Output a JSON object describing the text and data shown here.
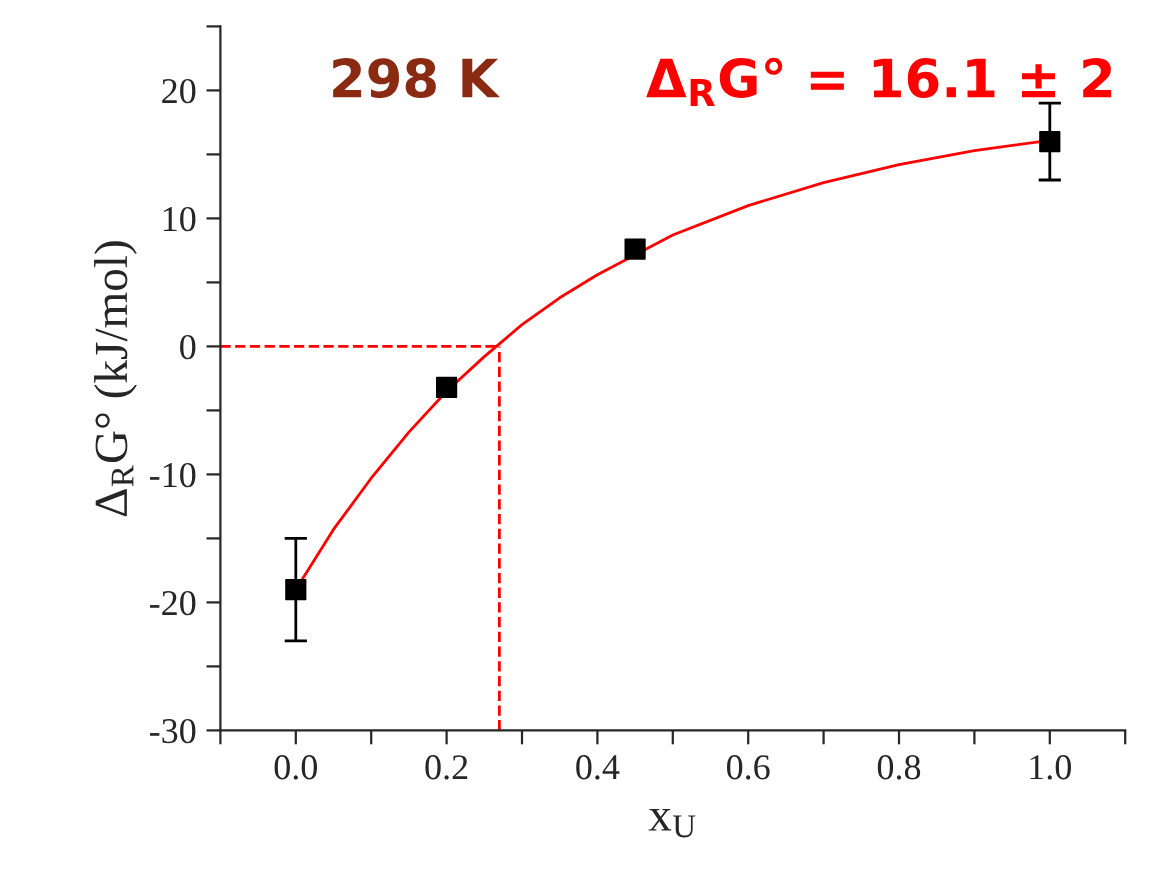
{
  "chart_data": {
    "type": "scatter",
    "xlabel": "x$_{U}$",
    "ylabel": "Δ$_{R}$G° (kJ/mol)",
    "annotations": [
      "298 K",
      "Δ$_{R}$G° = 16.1 ± 2"
    ],
    "series": [
      {
        "color": "#000000",
        "marker": "square",
        "x": [
          0.0,
          0.2,
          0.45,
          1.0
        ],
        "values": [
          -19.0,
          -3.2,
          7.6,
          16.0
        ],
        "errors": [
          4,
          null,
          null,
          3
        ]
      },
      {
        "type": "line",
        "color": "#ff0000",
        "marker": "none",
        "line_style": "solid",
        "x": [
          0,
          0.05,
          0.1,
          0.15,
          0.2,
          0.25,
          0.3,
          0.35,
          0.4,
          0.5,
          0.6,
          0.7,
          0.8,
          0.9,
          1.0
        ],
        "values": [
          -19.0,
          -14.3,
          -10.3,
          -6.7,
          -3.5,
          -0.8,
          1.7,
          3.8,
          5.6,
          8.7,
          11.0,
          12.8,
          14.2,
          15.3,
          16.1
        ]
      }
    ],
    "ref_lines": [
      {
        "axis": "y",
        "value": 0,
        "color": "#ff0000",
        "line_style": "dashed"
      },
      {
        "axis": "x",
        "value": 0.27,
        "color": "#ff0000",
        "line_style": "dashed"
      }
    ],
    "xlim": [
      -0.1,
      1.1
    ],
    "ylim": [
      -30,
      25
    ],
    "xticks": [
      {
        "value": -0.1,
        "label": null
      },
      {
        "value": 0,
        "label": "0.0"
      },
      {
        "value": 0.1,
        "label": null
      },
      0.2,
      {
        "value": 0.3,
        "label": null
      },
      0.4,
      {
        "value": 0.5,
        "label": null
      },
      0.6,
      {
        "value": 0.7,
        "label": null
      },
      0.8,
      {
        "value": 0.9,
        "label": null
      },
      {
        "value": 1,
        "label": "1.0"
      },
      {
        "value": 1.1,
        "label": null
      }
    ],
    "yticks": [
      -30,
      {
        "value": -25,
        "label": null
      },
      -20,
      {
        "value": -15,
        "label": null
      },
      -10,
      {
        "value": -5,
        "label": null
      },
      0,
      {
        "value": 5,
        "label": null
      },
      10,
      {
        "value": 15,
        "label": null
      },
      20,
      {
        "value": 25,
        "label": null
      }
    ],
    "grid": false
  }
}
